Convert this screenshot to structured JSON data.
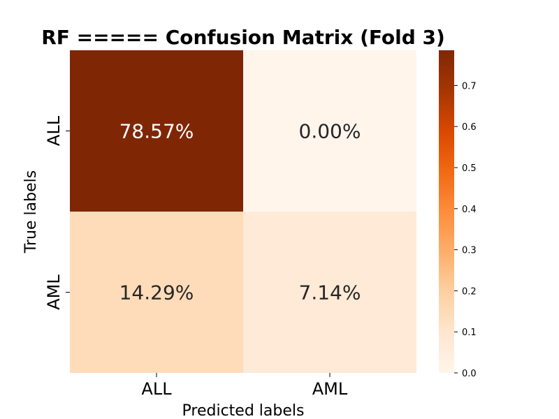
{
  "chart_data": {
    "type": "heatmap",
    "title": "RF ===== Confusion Matrix (Fold 3)",
    "xlabel": "Predicted labels",
    "ylabel": "True labels",
    "x_categories": [
      "ALL",
      "AML"
    ],
    "y_categories": [
      "ALL",
      "AML"
    ],
    "values": [
      [
        0.7857,
        0.0
      ],
      [
        0.1429,
        0.0714
      ]
    ],
    "cell_labels": [
      [
        "78.57%",
        "0.00%"
      ],
      [
        "14.29%",
        "7.14%"
      ]
    ],
    "colorbar": {
      "colormap": "Oranges",
      "range": [
        0.0,
        0.7857
      ],
      "ticks": [
        0.0,
        0.1,
        0.2,
        0.3,
        0.4,
        0.5,
        0.6,
        0.7
      ],
      "tick_labels": [
        "0.0",
        "0.1",
        "0.2",
        "0.3",
        "0.4",
        "0.5",
        "0.6",
        "0.7"
      ]
    }
  }
}
